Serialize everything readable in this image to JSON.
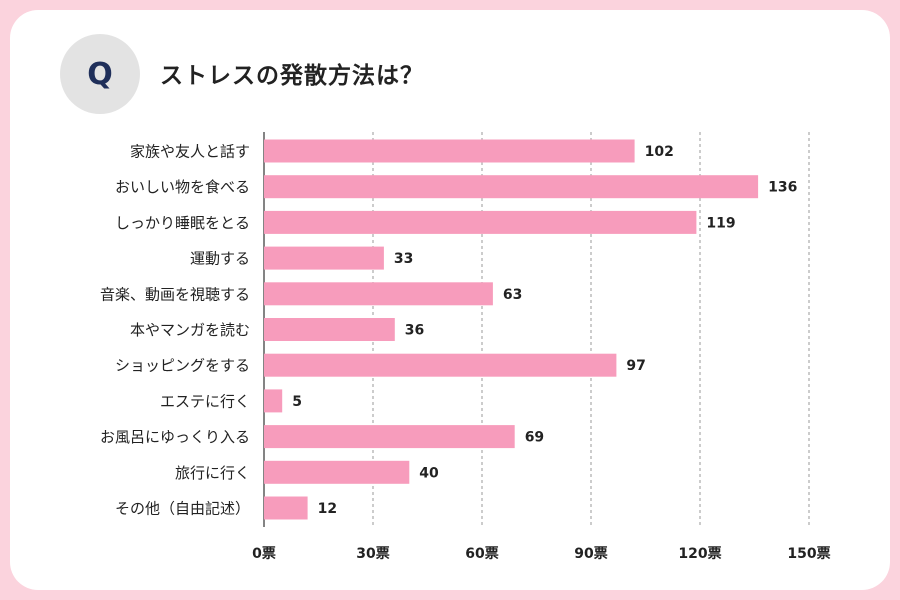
{
  "header": {
    "badge": "Q",
    "title": "ストレスの発散方法は？"
  },
  "colors": {
    "bar": "#f79cbc",
    "frame": "#fbd3dd",
    "badge_bg": "#e3e3e3",
    "badge_text": "#1f2f5a"
  },
  "chart_data": {
    "type": "bar",
    "orientation": "horizontal",
    "title": "ストレスの発散方法は？",
    "categories": [
      "家族や友人と話す",
      "おいしい物を食べる",
      "しっかり睡眠をとる",
      "運動する",
      "音楽、動画を視聴する",
      "本やマンガを読む",
      "ショッピングをする",
      "エステに行く",
      "お風呂にゆっくり入る",
      "旅行に行く",
      "その他（自由記述）"
    ],
    "values": [
      102,
      136,
      119,
      33,
      63,
      36,
      97,
      5,
      69,
      40,
      12
    ],
    "xlim": [
      0,
      150
    ],
    "ticks": [
      0,
      30,
      60,
      90,
      120,
      150
    ],
    "tick_labels": [
      "0票",
      "30票",
      "60票",
      "90票",
      "120票",
      "150票"
    ],
    "grid": "dashed vertical",
    "xlabel": "",
    "ylabel": ""
  }
}
